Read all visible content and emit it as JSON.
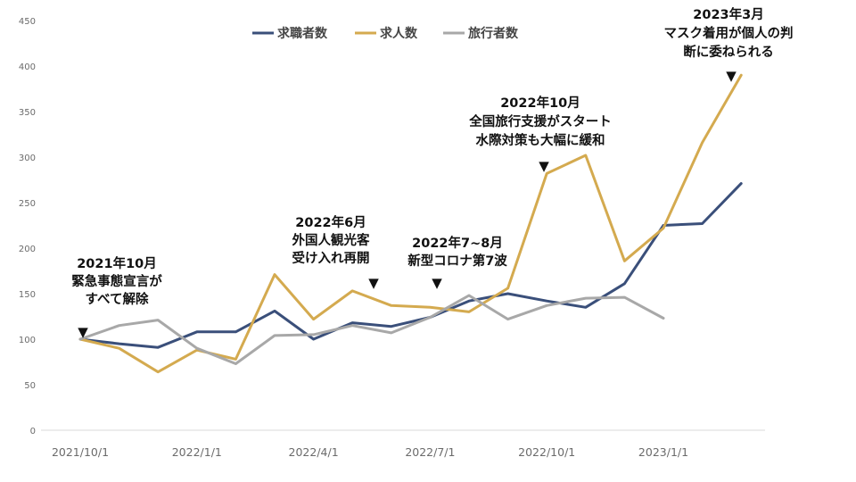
{
  "chart_data": {
    "type": "line",
    "ylim": [
      0,
      450
    ],
    "yticks": [
      0,
      50,
      100,
      150,
      200,
      250,
      300,
      350,
      400,
      450
    ],
    "xlim": [
      "2021/10/1",
      "2023/3/1"
    ],
    "xticks": [
      "2021/10/1",
      "2022/1/1",
      "2022/4/1",
      "2022/7/1",
      "2022/10/1",
      "2023/1/1"
    ],
    "grid": false,
    "legend_position": "top-center",
    "series": [
      {
        "name": "求職者数",
        "color": "#3a4f7a",
        "points": [
          [
            "2021/10/1",
            100
          ],
          [
            "2021/11/1",
            95
          ],
          [
            "2021/12/1",
            91
          ],
          [
            "2022/1/1",
            108
          ],
          [
            "2022/2/1",
            108
          ],
          [
            "2022/3/1",
            131
          ],
          [
            "2022/4/1",
            100
          ],
          [
            "2022/5/1",
            118
          ],
          [
            "2022/6/1",
            114
          ],
          [
            "2022/7/1",
            124
          ],
          [
            "2022/8/1",
            142
          ],
          [
            "2022/9/1",
            150
          ],
          [
            "2022/10/1",
            142
          ],
          [
            "2022/11/1",
            135
          ],
          [
            "2022/12/1",
            161
          ],
          [
            "2023/1/1",
            225
          ],
          [
            "2023/2/1",
            227
          ],
          [
            "2023/3/1",
            271
          ]
        ]
      },
      {
        "name": "求人数",
        "color": "#d4aa4f",
        "points": [
          [
            "2021/10/1",
            100
          ],
          [
            "2021/11/1",
            90
          ],
          [
            "2021/12/1",
            64
          ],
          [
            "2022/1/1",
            88
          ],
          [
            "2022/2/1",
            78
          ],
          [
            "2022/3/1",
            171
          ],
          [
            "2022/4/1",
            122
          ],
          [
            "2022/5/1",
            153
          ],
          [
            "2022/6/1",
            137
          ],
          [
            "2022/7/1",
            135
          ],
          [
            "2022/8/1",
            130
          ],
          [
            "2022/9/1",
            156
          ],
          [
            "2022/10/1",
            282
          ],
          [
            "2022/11/1",
            302
          ],
          [
            "2022/12/1",
            186
          ],
          [
            "2023/1/1",
            222
          ],
          [
            "2023/2/1",
            316
          ],
          [
            "2023/3/1",
            390
          ]
        ]
      },
      {
        "name": "旅行者数",
        "color": "#a8a8a8",
        "points": [
          [
            "2021/10/1",
            100
          ],
          [
            "2021/11/1",
            115
          ],
          [
            "2021/12/1",
            121
          ],
          [
            "2022/1/1",
            90
          ],
          [
            "2022/2/1",
            73
          ],
          [
            "2022/3/1",
            104
          ],
          [
            "2022/4/1",
            105
          ],
          [
            "2022/5/1",
            115
          ],
          [
            "2022/6/1",
            107
          ],
          [
            "2022/7/1",
            124
          ],
          [
            "2022/8/1",
            148
          ],
          [
            "2022/9/1",
            122
          ],
          [
            "2022/10/1",
            137
          ],
          [
            "2022/11/1",
            145
          ],
          [
            "2022/12/1",
            146
          ],
          [
            "2023/1/1",
            123
          ]
        ]
      }
    ],
    "annotations": [
      {
        "lines": [
          "2021年10月",
          "緊急事態宣言が",
          "すべて解除"
        ],
        "marker": "▼",
        "anchor_x": "2021/10/1"
      },
      {
        "lines": [
          "2022年6月",
          "外国人観光客",
          "受け入れ再開"
        ],
        "marker": "▼",
        "anchor_x": "2022/6/1"
      },
      {
        "lines": [
          "2022年7~8月",
          "新型コロナ第7波"
        ],
        "marker": "▼",
        "anchor_x": "2022/7/1"
      },
      {
        "lines": [
          "2022年10月",
          "全国旅行支援がスタート",
          "水際対策も大幅に緩和"
        ],
        "marker": "▼",
        "anchor_x": "2022/10/1"
      },
      {
        "lines": [
          "2023年3月",
          "マスク着用が個人の判",
          "断に委ねられる"
        ],
        "marker": "▼",
        "anchor_x": "2023/2/1"
      }
    ]
  }
}
